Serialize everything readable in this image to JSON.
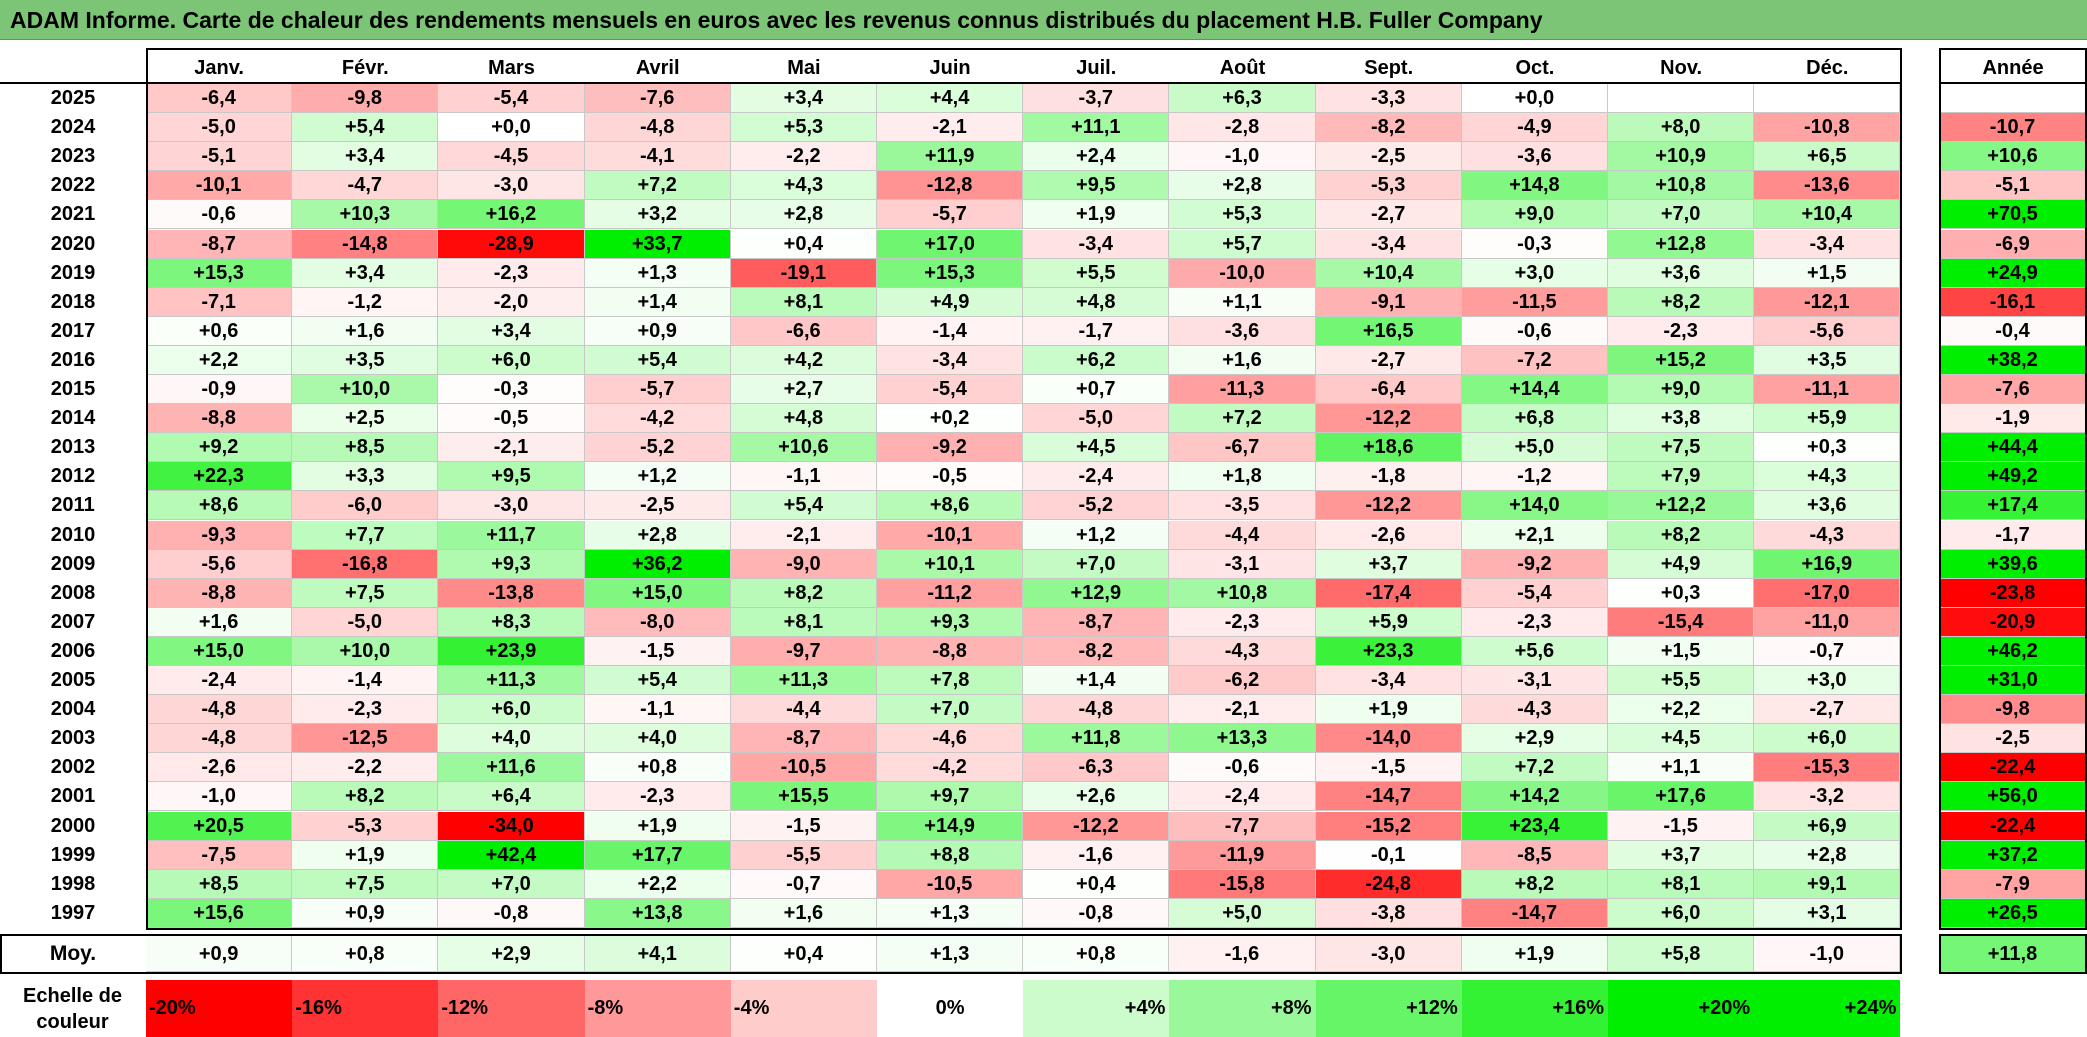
{
  "title": "ADAM Informe. Carte de chaleur des rendements mensuels en euros avec les revenus connus distribués du placement H.B. Fuller Company",
  "chart_data": {
    "type": "heatmap",
    "columns": [
      "Janv.",
      "Févr.",
      "Mars",
      "Avril",
      "Mai",
      "Juin",
      "Juil.",
      "Août",
      "Sept.",
      "Oct.",
      "Nov.",
      "Déc."
    ],
    "year_column_label": "Année",
    "rows": [
      {
        "label": "2025",
        "values": [
          "-6,4",
          "-9,8",
          "-5,4",
          "-7,6",
          "+3,4",
          "+4,4",
          "-3,7",
          "+6,3",
          "-3,3",
          "+0,0",
          "",
          ""
        ],
        "year": ""
      },
      {
        "label": "2024",
        "values": [
          "-5,0",
          "+5,4",
          "+0,0",
          "-4,8",
          "+5,3",
          "-2,1",
          "+11,1",
          "-2,8",
          "-8,2",
          "-4,9",
          "+8,0",
          "-10,8"
        ],
        "year": "-10,7"
      },
      {
        "label": "2023",
        "values": [
          "-5,1",
          "+3,4",
          "-4,5",
          "-4,1",
          "-2,2",
          "+11,9",
          "+2,4",
          "-1,0",
          "-2,5",
          "-3,6",
          "+10,9",
          "+6,5"
        ],
        "year": "+10,6"
      },
      {
        "label": "2022",
        "values": [
          "-10,1",
          "-4,7",
          "-3,0",
          "+7,2",
          "+4,3",
          "-12,8",
          "+9,5",
          "+2,8",
          "-5,3",
          "+14,8",
          "+10,8",
          "-13,6"
        ],
        "year": "-5,1"
      },
      {
        "label": "2021",
        "values": [
          "-0,6",
          "+10,3",
          "+16,2",
          "+3,2",
          "+2,8",
          "-5,7",
          "+1,9",
          "+5,3",
          "-2,7",
          "+9,0",
          "+7,0",
          "+10,4"
        ],
        "year": "+70,5"
      },
      {
        "label": "2020",
        "values": [
          "-8,7",
          "-14,8",
          "-28,9",
          "+33,7",
          "+0,4",
          "+17,0",
          "-3,4",
          "+5,7",
          "-3,4",
          "-0,3",
          "+12,8",
          "-3,4"
        ],
        "year": "-6,9"
      },
      {
        "label": "2019",
        "values": [
          "+15,3",
          "+3,4",
          "-2,3",
          "+1,3",
          "-19,1",
          "+15,3",
          "+5,5",
          "-10,0",
          "+10,4",
          "+3,0",
          "+3,6",
          "+1,5"
        ],
        "year": "+24,9"
      },
      {
        "label": "2018",
        "values": [
          "-7,1",
          "-1,2",
          "-2,0",
          "+1,4",
          "+8,1",
          "+4,9",
          "+4,8",
          "+1,1",
          "-9,1",
          "-11,5",
          "+8,2",
          "-12,1"
        ],
        "year": "-16,1"
      },
      {
        "label": "2017",
        "values": [
          "+0,6",
          "+1,6",
          "+3,4",
          "+0,9",
          "-6,6",
          "-1,4",
          "-1,7",
          "-3,6",
          "+16,5",
          "-0,6",
          "-2,3",
          "-5,6"
        ],
        "year": "-0,4"
      },
      {
        "label": "2016",
        "values": [
          "+2,2",
          "+3,5",
          "+6,0",
          "+5,4",
          "+4,2",
          "-3,4",
          "+6,2",
          "+1,6",
          "-2,7",
          "-7,2",
          "+15,2",
          "+3,5"
        ],
        "year": "+38,2"
      },
      {
        "label": "2015",
        "values": [
          "-0,9",
          "+10,0",
          "-0,3",
          "-5,7",
          "+2,7",
          "-5,4",
          "+0,7",
          "-11,3",
          "-6,4",
          "+14,4",
          "+9,0",
          "-11,1"
        ],
        "year": "-7,6"
      },
      {
        "label": "2014",
        "values": [
          "-8,8",
          "+2,5",
          "-0,5",
          "-4,2",
          "+4,8",
          "+0,2",
          "-5,0",
          "+7,2",
          "-12,2",
          "+6,8",
          "+3,8",
          "+5,9"
        ],
        "year": "-1,9"
      },
      {
        "label": "2013",
        "values": [
          "+9,2",
          "+8,5",
          "-2,1",
          "-5,2",
          "+10,6",
          "-9,2",
          "+4,5",
          "-6,7",
          "+18,6",
          "+5,0",
          "+7,5",
          "+0,3"
        ],
        "year": "+44,4"
      },
      {
        "label": "2012",
        "values": [
          "+22,3",
          "+3,3",
          "+9,5",
          "+1,2",
          "-1,1",
          "-0,5",
          "-2,4",
          "+1,8",
          "-1,8",
          "-1,2",
          "+7,9",
          "+4,3"
        ],
        "year": "+49,2"
      },
      {
        "label": "2011",
        "values": [
          "+8,6",
          "-6,0",
          "-3,0",
          "-2,5",
          "+5,4",
          "+8,6",
          "-5,2",
          "-3,5",
          "-12,2",
          "+14,0",
          "+12,2",
          "+3,6"
        ],
        "year": "+17,4"
      },
      {
        "label": "2010",
        "values": [
          "-9,3",
          "+7,7",
          "+11,7",
          "+2,8",
          "-2,1",
          "-10,1",
          "+1,2",
          "-4,4",
          "-2,6",
          "+2,1",
          "+8,2",
          "-4,3"
        ],
        "year": "-1,7"
      },
      {
        "label": "2009",
        "values": [
          "-5,6",
          "-16,8",
          "+9,3",
          "+36,2",
          "-9,0",
          "+10,1",
          "+7,0",
          "-3,1",
          "+3,7",
          "-9,2",
          "+4,9",
          "+16,9"
        ],
        "year": "+39,6"
      },
      {
        "label": "2008",
        "values": [
          "-8,8",
          "+7,5",
          "-13,8",
          "+15,0",
          "+8,2",
          "-11,2",
          "+12,9",
          "+10,8",
          "-17,4",
          "-5,4",
          "+0,3",
          "-17,0"
        ],
        "year": "-23,8"
      },
      {
        "label": "2007",
        "values": [
          "+1,6",
          "-5,0",
          "+8,3",
          "-8,0",
          "+8,1",
          "+9,3",
          "-8,7",
          "-2,3",
          "+5,9",
          "-2,3",
          "-15,4",
          "-11,0"
        ],
        "year": "-20,9"
      },
      {
        "label": "2006",
        "values": [
          "+15,0",
          "+10,0",
          "+23,9",
          "-1,5",
          "-9,7",
          "-8,8",
          "-8,2",
          "-4,3",
          "+23,3",
          "+5,6",
          "+1,5",
          "-0,7"
        ],
        "year": "+46,2"
      },
      {
        "label": "2005",
        "values": [
          "-2,4",
          "-1,4",
          "+11,3",
          "+5,4",
          "+11,3",
          "+7,8",
          "+1,4",
          "-6,2",
          "-3,4",
          "-3,1",
          "+5,5",
          "+3,0"
        ],
        "year": "+31,0"
      },
      {
        "label": "2004",
        "values": [
          "-4,8",
          "-2,3",
          "+6,0",
          "-1,1",
          "-4,4",
          "+7,0",
          "-4,8",
          "-2,1",
          "+1,9",
          "-4,3",
          "+2,2",
          "-2,7"
        ],
        "year": "-9,8"
      },
      {
        "label": "2003",
        "values": [
          "-4,8",
          "-12,5",
          "+4,0",
          "+4,0",
          "-8,7",
          "-4,6",
          "+11,8",
          "+13,3",
          "-14,0",
          "+2,9",
          "+4,5",
          "+6,0"
        ],
        "year": "-2,5"
      },
      {
        "label": "2002",
        "values": [
          "-2,6",
          "-2,2",
          "+11,6",
          "+0,8",
          "-10,5",
          "-4,2",
          "-6,3",
          "-0,6",
          "-1,5",
          "+7,2",
          "+1,1",
          "-15,3"
        ],
        "year": "-22,4"
      },
      {
        "label": "2001",
        "values": [
          "-1,0",
          "+8,2",
          "+6,4",
          "-2,3",
          "+15,5",
          "+9,7",
          "+2,6",
          "-2,4",
          "-14,7",
          "+14,2",
          "+17,6",
          "-3,2"
        ],
        "year": "+56,0"
      },
      {
        "label": "2000",
        "values": [
          "+20,5",
          "-5,3",
          "-34,0",
          "+1,9",
          "-1,5",
          "+14,9",
          "-12,2",
          "-7,7",
          "-15,2",
          "+23,4",
          "-1,5",
          "+6,9"
        ],
        "year": "-22,4"
      },
      {
        "label": "1999",
        "values": [
          "-7,5",
          "+1,9",
          "+42,4",
          "+17,7",
          "-5,5",
          "+8,8",
          "-1,6",
          "-11,9",
          "-0,1",
          "-8,5",
          "+3,7",
          "+2,8"
        ],
        "year": "+37,2"
      },
      {
        "label": "1998",
        "values": [
          "+8,5",
          "+7,5",
          "+7,0",
          "+2,2",
          "-0,7",
          "-10,5",
          "+0,4",
          "-15,8",
          "-24,8",
          "+8,2",
          "+8,1",
          "+9,1"
        ],
        "year": "-7,9"
      },
      {
        "label": "1997",
        "values": [
          "+15,6",
          "+0,9",
          "-0,8",
          "+13,8",
          "+1,6",
          "+1,3",
          "-0,8",
          "+5,0",
          "-3,8",
          "-14,7",
          "+6,0",
          "+3,1"
        ],
        "year": "+26,5"
      }
    ],
    "average": {
      "label": "Moy.",
      "values": [
        "+0,9",
        "+0,8",
        "+2,9",
        "+4,1",
        "+0,4",
        "+1,3",
        "+0,8",
        "-1,6",
        "-3,0",
        "+1,9",
        "+5,8",
        "-1,0"
      ],
      "year": "+11,8"
    },
    "color_scale": {
      "title": "Echelle de couleur",
      "stops": [
        "-20%",
        "-16%",
        "-12%",
        "-8%",
        "-4%",
        "0%",
        "+4%",
        "+8%",
        "+12%",
        "+16%",
        "+20%",
        "+24%"
      ],
      "stop_values": [
        -20,
        -16,
        -12,
        -8,
        -4,
        0,
        4,
        8,
        12,
        16,
        20,
        24
      ]
    },
    "colors": {
      "negative": "#ff0000",
      "neutral": "#ffffff",
      "positive": "#00ee00"
    }
  }
}
